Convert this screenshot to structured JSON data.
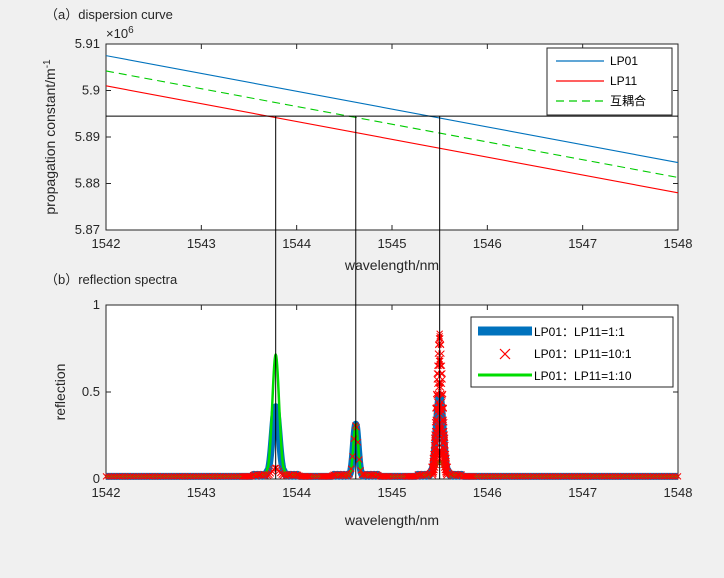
{
  "chart_data": [
    {
      "type": "line",
      "title": "（a）dispersion curve",
      "xlabel": "wavelength/nm",
      "ylabel": "propagation constant/m-1",
      "y_multiplier": "×10^6",
      "xlim": [
        1542,
        1548
      ],
      "ylim": [
        5.87,
        5.91
      ],
      "x_ticks": [
        "1542",
        "1543",
        "1544",
        "1545",
        "1546",
        "1547",
        "1548"
      ],
      "y_ticks": [
        "5.87",
        "5.88",
        "5.89",
        "5.9",
        "5.91"
      ],
      "grid": false,
      "legend_position": "top-right",
      "series": [
        {
          "name": "LP01",
          "color": "#0072BD",
          "style": "solid",
          "x": [
            1542,
            1548
          ],
          "y": [
            5.9075,
            5.8845
          ]
        },
        {
          "name": "LP11",
          "color": "#FF0000",
          "style": "solid",
          "x": [
            1542,
            1548
          ],
          "y": [
            5.901,
            5.878
          ]
        },
        {
          "name": "互耦合",
          "color": "#00CC00",
          "style": "dashed",
          "x": [
            1542,
            1548
          ],
          "y": [
            5.9042,
            5.8813
          ]
        }
      ],
      "annotations": {
        "horizontal_line_y": 5.8945,
        "vertical_lines_x": [
          1543.78,
          1544.62,
          1545.5
        ]
      }
    },
    {
      "type": "line",
      "title": "（b）reflection spectra",
      "xlabel": "wavelength/nm",
      "ylabel": "reflection",
      "xlim": [
        1542,
        1548
      ],
      "ylim": [
        0,
        1
      ],
      "x_ticks": [
        "1542",
        "1543",
        "1544",
        "1545",
        "1546",
        "1547",
        "1548"
      ],
      "y_ticks": [
        "0",
        "0.5",
        "1"
      ],
      "grid": false,
      "legend_position": "top-right",
      "series": [
        {
          "name": "LP01：LP11=1:1",
          "color": "#0072BD",
          "style": "thick-line",
          "peaks": [
            {
              "x": 1543.78,
              "height": 0.4
            },
            {
              "x": 1544.62,
              "height": 0.3
            },
            {
              "x": 1545.5,
              "height": 0.47
            }
          ]
        },
        {
          "name": "LP01：LP11=10:1",
          "color": "#FF0000",
          "style": "x-marker",
          "peaks": [
            {
              "x": 1543.78,
              "height": 0.05
            },
            {
              "x": 1544.62,
              "height": 0.3
            },
            {
              "x": 1545.5,
              "height": 0.82
            }
          ]
        },
        {
          "name": "LP01：LP11=1:10",
          "color": "#00DD00",
          "style": "solid",
          "peaks": [
            {
              "x": 1543.78,
              "height": 0.7
            },
            {
              "x": 1544.62,
              "height": 0.3
            },
            {
              "x": 1545.5,
              "height": 0.09
            }
          ]
        }
      ],
      "annotations": {
        "vertical_lines_x": [
          1543.78,
          1544.62,
          1545.5
        ]
      }
    }
  ]
}
